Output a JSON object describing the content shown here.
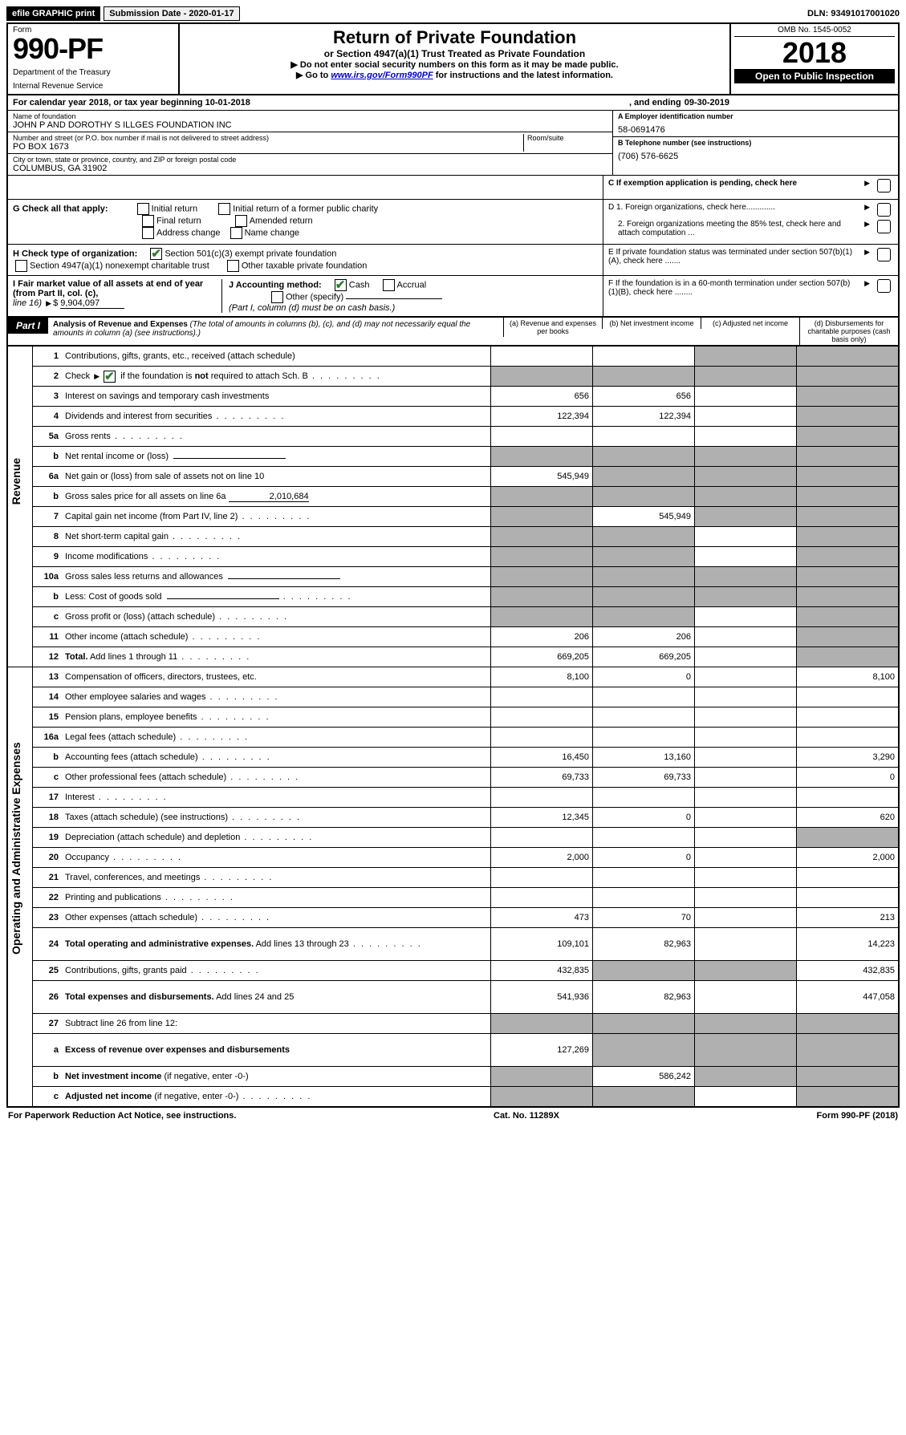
{
  "topbar": {
    "efile": "efile GRAPHIC print",
    "submission": "Submission Date - 2020-01-17",
    "dln": "DLN: 93491017001020"
  },
  "header": {
    "form_word": "Form",
    "form_number": "990-PF",
    "dept": "Department of the Treasury",
    "irs": "Internal Revenue Service",
    "title": "Return of Private Foundation",
    "subtitle": "or Section 4947(a)(1) Trust Treated as Private Foundation",
    "instr1": "Do not enter social security numbers on this form as it may be made public.",
    "instr2_pre": "Go to ",
    "instr2_link": "www.irs.gov/Form990PF",
    "instr2_post": " for instructions and the latest information.",
    "omb": "OMB No. 1545-0052",
    "year": "2018",
    "open": "Open to Public Inspection"
  },
  "calendar": {
    "text": "For calendar year 2018, or tax year beginning 10-01-2018",
    "ending_label": ", and ending ",
    "ending_val": "09-30-2019"
  },
  "id_block": {
    "name_label": "Name of foundation",
    "name": "JOHN P AND DOROTHY S ILLGES FOUNDATION INC",
    "addr_label": "Number and street (or P.O. box number if mail is not delivered to street address)",
    "room_label": "Room/suite",
    "addr": "PO BOX 1673",
    "city_label": "City or town, state or province, country, and ZIP or foreign postal code",
    "city": "COLUMBUS, GA  31902",
    "ein_label": "A Employer identification number",
    "ein": "58-0691476",
    "phone_label": "B Telephone number (see instructions)",
    "phone": "(706) 576-6625",
    "c_label": "C If exemption application is pending, check here",
    "d1": "D 1. Foreign organizations, check here.............",
    "d2": "2. Foreign organizations meeting the 85% test, check here and attach computation ...",
    "e": "E  If private foundation status was terminated under section 507(b)(1)(A), check here .......",
    "f": "F  If the foundation is in a 60-month termination under section 507(b)(1)(B), check here ........"
  },
  "g": {
    "label": "G Check all that apply:",
    "opts": [
      "Initial return",
      "Initial return of a former public charity",
      "Final return",
      "Amended return",
      "Address change",
      "Name change"
    ]
  },
  "h": {
    "label": "H Check type of organization:",
    "o1": "Section 501(c)(3) exempt private foundation",
    "o2": "Section 4947(a)(1) nonexempt charitable trust",
    "o3": "Other taxable private foundation"
  },
  "i": {
    "label": "I Fair market value of all assets at end of year (from Part II, col. (c),",
    "line16": "line 16)",
    "amount": "9,904,097"
  },
  "j": {
    "label": "J Accounting method:",
    "cash": "Cash",
    "accrual": "Accrual",
    "other": "Other (specify)",
    "note": "(Part I, column (d) must be on cash basis.)"
  },
  "part1": {
    "tag": "Part I",
    "title": "Analysis of Revenue and Expenses",
    "note": " (The total of amounts in columns (b), (c), and (d) may not necessarily equal the amounts in column (a) (see instructions).)",
    "col_a": "(a)   Revenue and expenses per books",
    "col_b": "(b)   Net investment income",
    "col_c": "(c)   Adjusted net income",
    "col_d": "(d)   Disbursements for charitable purposes (cash basis only)"
  },
  "vlabels": {
    "revenue": "Revenue",
    "expenses": "Operating and Administrative Expenses"
  },
  "rows": [
    {
      "n": "1",
      "d": "Contributions, gifts, grants, etc., received (attach schedule)",
      "a": "",
      "b": "",
      "c_shade": true,
      "dd_shade": true
    },
    {
      "n": "2",
      "d": "Check ▶ ☑ if the foundation is <b>not</b> required to attach Sch. B",
      "a_shade": true,
      "b_shade": true,
      "c_shade": true,
      "dd_shade": true,
      "dots": true
    },
    {
      "n": "3",
      "d": "Interest on savings and temporary cash investments",
      "a": "656",
      "b": "656",
      "c": "",
      "dd_shade": true
    },
    {
      "n": "4",
      "d": "Dividends and interest from securities",
      "a": "122,394",
      "b": "122,394",
      "c": "",
      "dd_shade": true,
      "dots": true
    },
    {
      "n": "5a",
      "d": "Gross rents",
      "a": "",
      "b": "",
      "c": "",
      "dd_shade": true,
      "dots": true
    },
    {
      "n": "b",
      "d": "Net rental income or (loss)",
      "inline_box": true,
      "a_shade": true,
      "b_shade": true,
      "c_shade": true,
      "dd_shade": true
    },
    {
      "n": "6a",
      "d": "Net gain or (loss) from sale of assets not on line 10",
      "a": "545,949",
      "b_shade": true,
      "c_shade": true,
      "dd_shade": true
    },
    {
      "n": "b",
      "d": "Gross sales price for all assets on line 6a",
      "inline_val": "2,010,684",
      "a_shade": true,
      "b_shade": true,
      "c_shade": true,
      "dd_shade": true
    },
    {
      "n": "7",
      "d": "Capital gain net income (from Part IV, line 2)",
      "a_shade": true,
      "b": "545,949",
      "c_shade": true,
      "dd_shade": true,
      "dots": true
    },
    {
      "n": "8",
      "d": "Net short-term capital gain",
      "a_shade": true,
      "b_shade": true,
      "c": "",
      "dd_shade": true,
      "dots": true
    },
    {
      "n": "9",
      "d": "Income modifications",
      "a_shade": true,
      "b_shade": true,
      "c": "",
      "dd_shade": true,
      "dots": true
    },
    {
      "n": "10a",
      "d": "Gross sales less returns and allowances",
      "inline_box": true,
      "a_shade": true,
      "b_shade": true,
      "c_shade": true,
      "dd_shade": true
    },
    {
      "n": "b",
      "d": "Less: Cost of goods sold",
      "inline_box": true,
      "a_shade": true,
      "b_shade": true,
      "c_shade": true,
      "dd_shade": true,
      "dots": true
    },
    {
      "n": "c",
      "d": "Gross profit or (loss) (attach schedule)",
      "a_shade": true,
      "b_shade": true,
      "c": "",
      "dd_shade": true,
      "dots": true
    },
    {
      "n": "11",
      "d": "Other income (attach schedule)",
      "a": "206",
      "b": "206",
      "c": "",
      "dd_shade": true,
      "dots": true
    },
    {
      "n": "12",
      "d": "<b>Total.</b> Add lines 1 through 11",
      "a": "669,205",
      "b": "669,205",
      "c": "",
      "dd_shade": true,
      "dots": true
    },
    {
      "n": "13",
      "d": "Compensation of officers, directors, trustees, etc.",
      "a": "8,100",
      "b": "0",
      "c": "",
      "dd": "8,100"
    },
    {
      "n": "14",
      "d": "Other employee salaries and wages",
      "a": "",
      "b": "",
      "c": "",
      "dd": "",
      "dots": true
    },
    {
      "n": "15",
      "d": "Pension plans, employee benefits",
      "a": "",
      "b": "",
      "c": "",
      "dd": "",
      "dots": true
    },
    {
      "n": "16a",
      "d": "Legal fees (attach schedule)",
      "a": "",
      "b": "",
      "c": "",
      "dd": "",
      "dots": true
    },
    {
      "n": "b",
      "d": "Accounting fees (attach schedule)",
      "a": "16,450",
      "b": "13,160",
      "c": "",
      "dd": "3,290",
      "dots": true
    },
    {
      "n": "c",
      "d": "Other professional fees (attach schedule)",
      "a": "69,733",
      "b": "69,733",
      "c": "",
      "dd": "0",
      "dots": true
    },
    {
      "n": "17",
      "d": "Interest",
      "a": "",
      "b": "",
      "c": "",
      "dd": "",
      "dots": true
    },
    {
      "n": "18",
      "d": "Taxes (attach schedule) (see instructions)",
      "a": "12,345",
      "b": "0",
      "c": "",
      "dd": "620",
      "dots": true
    },
    {
      "n": "19",
      "d": "Depreciation (attach schedule) and depletion",
      "a": "",
      "b": "",
      "c": "",
      "dd_shade": true,
      "dots": true
    },
    {
      "n": "20",
      "d": "Occupancy",
      "a": "2,000",
      "b": "0",
      "c": "",
      "dd": "2,000",
      "dots": true
    },
    {
      "n": "21",
      "d": "Travel, conferences, and meetings",
      "a": "",
      "b": "",
      "c": "",
      "dd": "",
      "dots": true
    },
    {
      "n": "22",
      "d": "Printing and publications",
      "a": "",
      "b": "",
      "c": "",
      "dd": "",
      "dots": true
    },
    {
      "n": "23",
      "d": "Other expenses (attach schedule)",
      "a": "473",
      "b": "70",
      "c": "",
      "dd": "213",
      "dots": true
    },
    {
      "n": "24",
      "d": "<b>Total operating and administrative expenses.</b> Add lines 13 through 23",
      "a": "109,101",
      "b": "82,963",
      "c": "",
      "dd": "14,223",
      "dots": true,
      "tall": true
    },
    {
      "n": "25",
      "d": "Contributions, gifts, grants paid",
      "a": "432,835",
      "b_shade": true,
      "c_shade": true,
      "dd": "432,835",
      "dots": true
    },
    {
      "n": "26",
      "d": "<b>Total expenses and disbursements.</b> Add lines 24 and 25",
      "a": "541,936",
      "b": "82,963",
      "c": "",
      "dd": "447,058",
      "tall": true
    },
    {
      "n": "27",
      "d": "Subtract line 26 from line 12:",
      "a_shade": true,
      "b_shade": true,
      "c_shade": true,
      "dd_shade": true
    },
    {
      "n": "a",
      "d": "<b>Excess of revenue over expenses and disbursements</b>",
      "a": "127,269",
      "b_shade": true,
      "c_shade": true,
      "dd_shade": true,
      "tall": true
    },
    {
      "n": "b",
      "d": "<b>Net investment income</b> (if negative, enter -0-)",
      "a_shade": true,
      "b": "586,242",
      "c_shade": true,
      "dd_shade": true
    },
    {
      "n": "c",
      "d": "<b>Adjusted net income</b> (if negative, enter -0-)",
      "a_shade": true,
      "b_shade": true,
      "c": "",
      "dd_shade": true,
      "dots": true
    }
  ],
  "footer": {
    "left": "For Paperwork Reduction Act Notice, see instructions.",
    "mid": "Cat. No. 11289X",
    "right": "Form 990-PF (2018)"
  },
  "colors": {
    "shade": "#b0b0b0",
    "link": "#0000cc",
    "check": "#2e7d32"
  }
}
